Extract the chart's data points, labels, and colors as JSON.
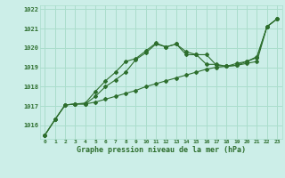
{
  "xlabel": "Graphe pression niveau de la mer (hPa)",
  "background_color": "#cceee8",
  "grid_color": "#aaddcc",
  "line_color": "#2d6e2d",
  "x_ticks": [
    0,
    1,
    2,
    3,
    4,
    5,
    6,
    7,
    8,
    9,
    10,
    11,
    12,
    13,
    14,
    15,
    16,
    17,
    18,
    19,
    20,
    21,
    22,
    23
  ],
  "ylim": [
    1015.3,
    1022.2
  ],
  "yticks": [
    1016,
    1017,
    1018,
    1019,
    1020,
    1021,
    1022
  ],
  "series": [
    [
      1015.5,
      1016.3,
      1017.05,
      1017.1,
      1017.1,
      1017.2,
      1017.35,
      1017.5,
      1017.65,
      1017.8,
      1018.0,
      1018.15,
      1018.3,
      1018.45,
      1018.6,
      1018.75,
      1018.9,
      1019.0,
      1019.05,
      1019.1,
      1019.2,
      1019.3,
      1021.1,
      1021.5
    ],
    [
      1015.5,
      1016.3,
      1017.05,
      1017.1,
      1017.1,
      1017.5,
      1018.0,
      1018.35,
      1018.75,
      1019.4,
      1019.75,
      1020.2,
      1020.05,
      1020.2,
      1019.8,
      1019.65,
      1019.65,
      1019.1,
      1019.05,
      1019.1,
      1019.3,
      1019.5,
      1021.1,
      1021.5
    ],
    [
      1015.5,
      1016.3,
      1017.05,
      1017.1,
      1017.15,
      1017.75,
      1018.3,
      1018.75,
      1019.3,
      1019.45,
      1019.85,
      1020.25,
      1020.05,
      1020.2,
      1019.65,
      1019.65,
      1019.15,
      1019.15,
      1019.05,
      1019.2,
      1019.3,
      1019.55,
      1021.1,
      1021.5
    ]
  ],
  "figwidth": 3.2,
  "figheight": 2.0,
  "dpi": 100
}
